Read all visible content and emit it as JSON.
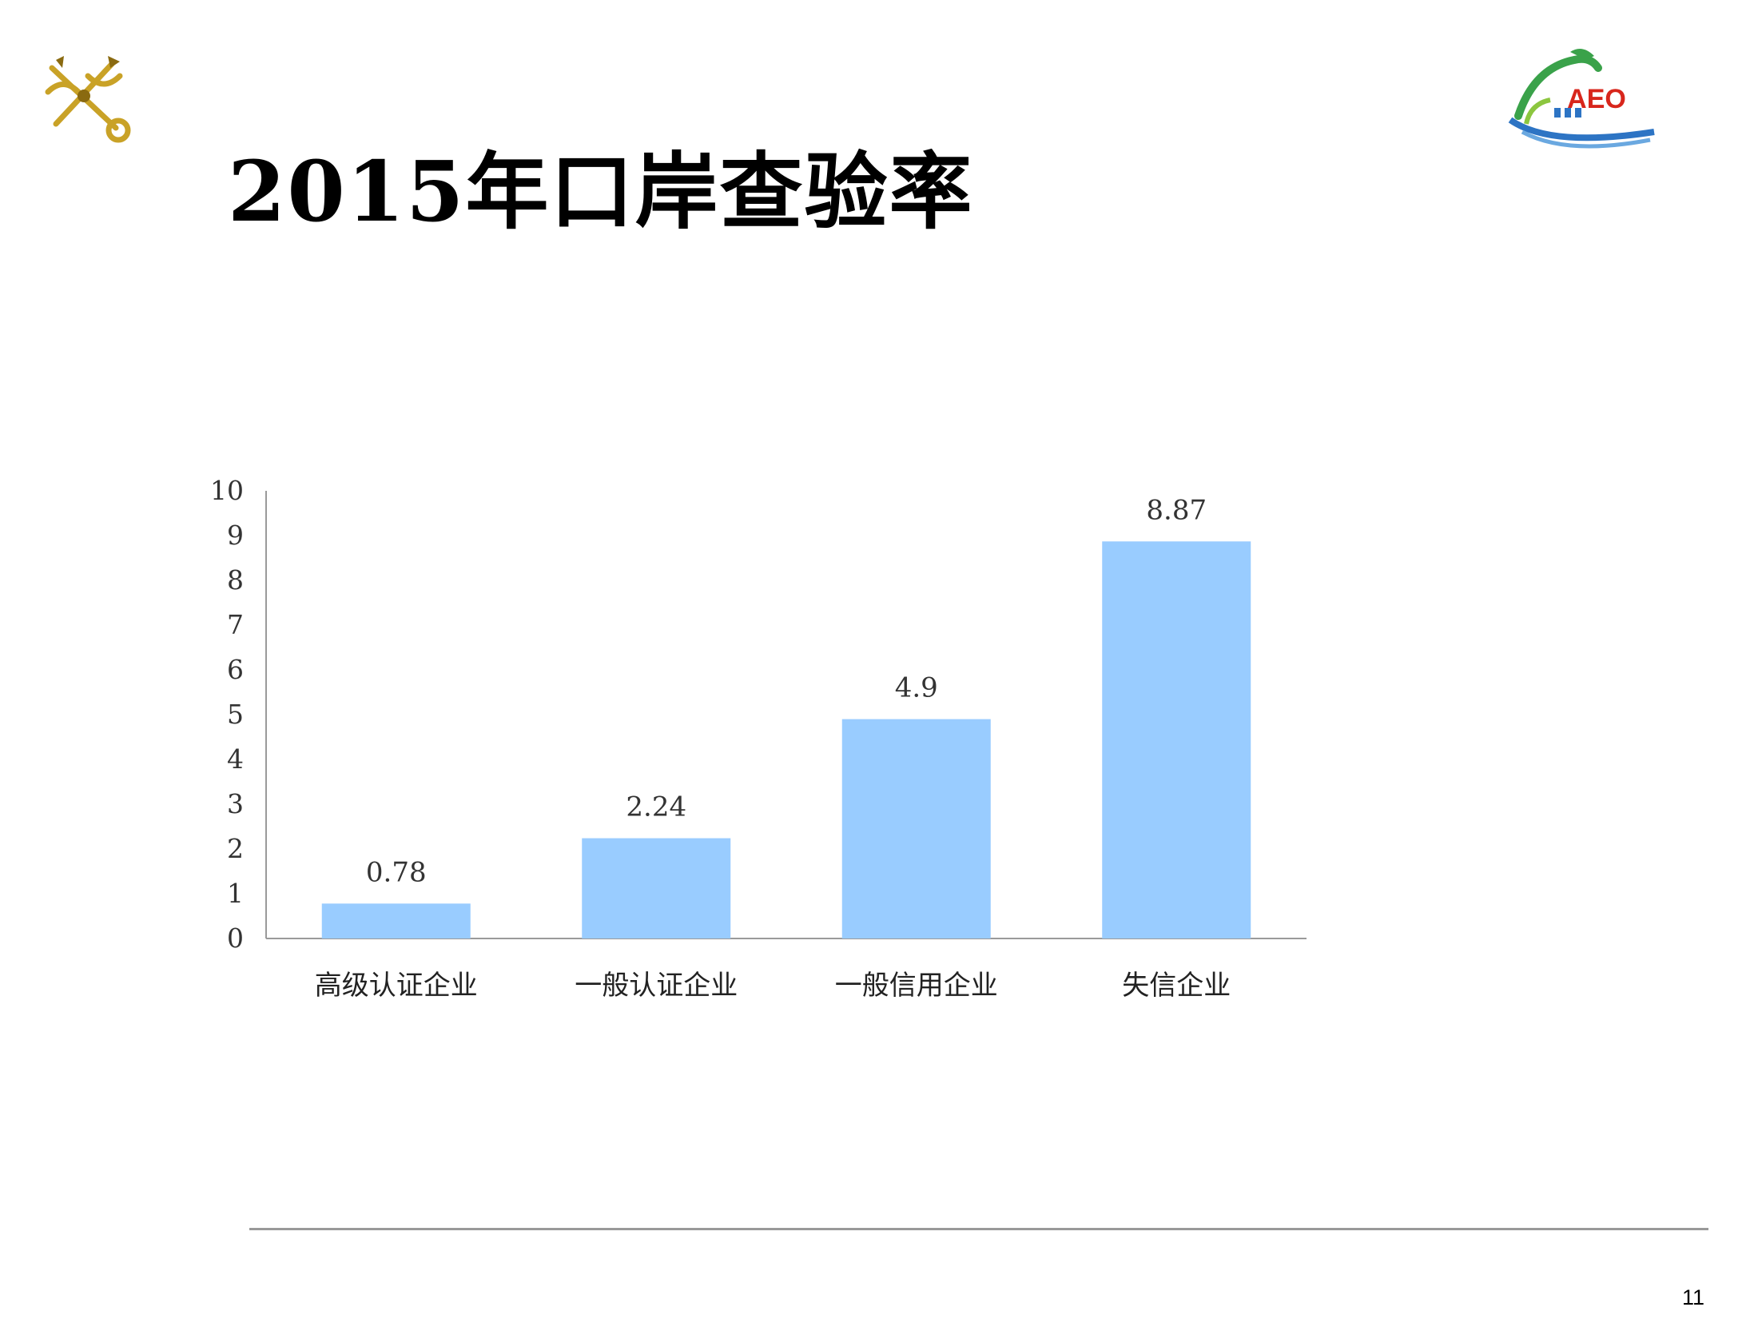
{
  "slide": {
    "title": "2015年口岸查验率",
    "page_number": "11"
  },
  "logos": {
    "left_icon": "customs-key-anchor-emblem",
    "right_icon": "aeo-dragon-great-wall-logo",
    "right_text": "AEO",
    "colors": {
      "gold": "#c9a227",
      "aeo_red": "#d8261c",
      "aeo_green": "#3aa24a",
      "aeo_blue": "#2d74c4"
    }
  },
  "chart_data": {
    "type": "bar",
    "categories": [
      "高级认证企业",
      "一般认证企业",
      "一般信用企业",
      "失信企业"
    ],
    "values": [
      0.78,
      2.24,
      4.9,
      8.87
    ],
    "value_labels": [
      "0.78",
      "2.24",
      "4.9",
      "8.87"
    ],
    "y_ticks": [
      "0",
      "1",
      "2",
      "3",
      "4",
      "5",
      "6",
      "7",
      "8",
      "9",
      "10"
    ],
    "ylim": [
      0,
      10
    ],
    "bar_color": "#99ccff",
    "grid": false,
    "legend": "none",
    "title": "",
    "xlabel": "",
    "ylabel": ""
  }
}
